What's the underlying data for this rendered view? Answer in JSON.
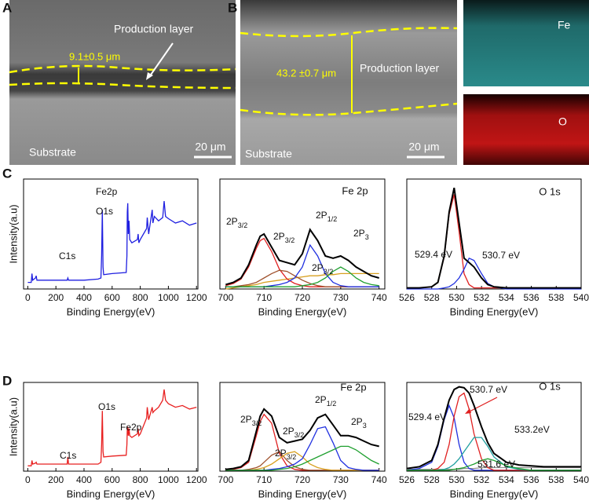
{
  "figure": {
    "panel_labels": [
      "A",
      "B",
      "C",
      "D"
    ],
    "sem_a": {
      "layer": "Production layer",
      "thickness": "9.1±0.5 μm",
      "substrate": "Substrate",
      "scale": "20 μm"
    },
    "sem_b": {
      "layer": "Production layer",
      "thickness": "43.2 ±0.7 μm",
      "substrate": "Substrate",
      "scale": "20 μm"
    },
    "eds": [
      "Fe",
      "O"
    ]
  },
  "chart_data": [
    {
      "type": "line",
      "xlabel": "Binding Energy(eV)",
      "ylabel": "Intensity(a.u)",
      "xlim": [
        -30,
        1210
      ],
      "xticks": [
        0,
        200,
        400,
        600,
        800,
        1000,
        1200
      ],
      "ylim": [
        0,
        100
      ],
      "x": [
        0,
        25,
        30,
        35,
        55,
        60,
        65,
        100,
        200,
        280,
        285,
        290,
        400,
        500,
        520,
        525,
        530,
        535,
        540,
        600,
        700,
        705,
        708,
        711,
        715,
        720,
        725,
        740,
        780,
        785,
        790,
        800,
        845,
        850,
        860,
        885,
        890,
        900,
        930,
        960,
        970,
        980,
        1000,
        1050,
        1100,
        1150,
        1200
      ],
      "series": [
        {
          "color": "#1f1fe0",
          "values": [
            6,
            6,
            14,
            8,
            10,
            12,
            8,
            8,
            8,
            8,
            10,
            8,
            8,
            9,
            10,
            30,
            72,
            20,
            13,
            14,
            15,
            30,
            70,
            78,
            50,
            62,
            45,
            42,
            45,
            50,
            42,
            45,
            55,
            65,
            50,
            72,
            60,
            66,
            62,
            65,
            80,
            66,
            64,
            60,
            62,
            58,
            60
          ]
        }
      ],
      "annotations": [
        {
          "text": "O1s"
        },
        {
          "text": "Fe2p"
        },
        {
          "text": "C1s"
        }
      ]
    },
    {
      "type": "line",
      "title": "Fe 2p",
      "xlabel": "Binding Energy(eV)",
      "xlim": [
        698.5,
        741.5
      ],
      "xticks": [
        700,
        710,
        720,
        730,
        740
      ],
      "ylim": [
        0,
        100
      ],
      "x": [
        700,
        702,
        704,
        706,
        708,
        709,
        710,
        712,
        714,
        716,
        718,
        720,
        722,
        724,
        726,
        728,
        730,
        732,
        734,
        736,
        738,
        740
      ],
      "series": [
        {
          "color": "#d8a020",
          "values": [
            0,
            1,
            2,
            3,
            4,
            5,
            6,
            7,
            8,
            9,
            10,
            11,
            12,
            12,
            13,
            13,
            14,
            14,
            14,
            14,
            14,
            14
          ]
        },
        {
          "color": "#e02020",
          "values": [
            3,
            5,
            9,
            20,
            37,
            44,
            46,
            34,
            18,
            9,
            5,
            3,
            2,
            2,
            2,
            2,
            2,
            2,
            2,
            2,
            2,
            2
          ]
        },
        {
          "color": "#a0522d",
          "values": [
            2,
            2,
            3,
            4,
            6,
            8,
            10,
            14,
            17,
            16,
            12,
            8,
            5,
            3,
            2,
            2,
            2,
            2,
            2,
            2,
            2,
            2
          ]
        },
        {
          "color": "#2030e0",
          "values": [
            2,
            2,
            2,
            2,
            2,
            2,
            2,
            3,
            4,
            6,
            10,
            20,
            40,
            30,
            14,
            6,
            3,
            2,
            2,
            2,
            2,
            2
          ]
        },
        {
          "color": "#20a030",
          "values": [
            2,
            2,
            2,
            2,
            2,
            2,
            2,
            2,
            2,
            2,
            2,
            3,
            4,
            6,
            10,
            16,
            20,
            16,
            10,
            6,
            4,
            3
          ]
        },
        {
          "color": "#000000",
          "values": [
            4,
            6,
            10,
            22,
            40,
            48,
            50,
            38,
            26,
            24,
            22,
            32,
            54,
            44,
            30,
            28,
            30,
            26,
            20,
            16,
            12,
            10
          ]
        }
      ],
      "annotations": [
        {
          "text": "2P",
          "sub": "3/2"
        },
        {
          "text": "2P",
          "sub": "3/2"
        },
        {
          "text": "2P",
          "sub": "1/2"
        },
        {
          "text": "2P",
          "sub": "3"
        },
        {
          "text": "2P",
          "sub": "3/2"
        }
      ]
    },
    {
      "type": "line",
      "title": "O 1s",
      "xlabel": "Binding Energy(eV)",
      "xlim": [
        526,
        540
      ],
      "xticks": [
        526,
        528,
        530,
        532,
        534,
        536,
        538,
        540
      ],
      "ylim": [
        0,
        100
      ],
      "x": [
        526,
        527,
        528,
        528.5,
        529,
        529.4,
        529.8,
        530.2,
        530.6,
        531,
        531.4,
        532,
        532.5,
        533,
        534,
        535,
        536,
        537,
        538,
        539,
        540
      ],
      "series": [
        {
          "color": "#e02020",
          "values": [
            1,
            1,
            2,
            6,
            29,
            68,
            86,
            52,
            14,
            4,
            1,
            1,
            1,
            1,
            1,
            1,
            1,
            1,
            1,
            1,
            1
          ]
        },
        {
          "color": "#2030e0",
          "values": [
            0,
            0,
            0,
            0,
            1,
            2,
            5,
            10,
            18,
            28,
            26,
            14,
            5,
            2,
            0,
            0,
            0,
            0,
            0,
            0,
            0
          ]
        },
        {
          "color": "#000000",
          "values": [
            1,
            1,
            2,
            6,
            30,
            70,
            92,
            60,
            28,
            24,
            20,
            10,
            4,
            2,
            1,
            1,
            1,
            1,
            1,
            1,
            1
          ]
        }
      ],
      "annotations": [
        {
          "text": "529.4 eV"
        },
        {
          "text": "530.7 eV"
        }
      ]
    },
    {
      "type": "line",
      "xlabel": "Binding Energy(eV)",
      "ylabel": "Intensity(a.u)",
      "xlim": [
        -30,
        1210
      ],
      "xticks": [
        0,
        200,
        400,
        600,
        800,
        1000,
        1200
      ],
      "ylim": [
        0,
        100
      ],
      "x": [
        0,
        25,
        30,
        35,
        55,
        60,
        65,
        100,
        200,
        280,
        285,
        290,
        400,
        500,
        520,
        525,
        530,
        535,
        540,
        600,
        700,
        705,
        708,
        711,
        715,
        720,
        725,
        740,
        780,
        785,
        790,
        800,
        845,
        850,
        860,
        885,
        890,
        900,
        930,
        960,
        970,
        980,
        1000,
        1050,
        1100,
        1150,
        1200
      ],
      "series": [
        {
          "color": "#e82020",
          "values": [
            6,
            6,
            12,
            8,
            9,
            10,
            8,
            8,
            8,
            8,
            16,
            8,
            8,
            8,
            10,
            30,
            68,
            22,
            16,
            17,
            18,
            30,
            48,
            50,
            40,
            48,
            40,
            38,
            42,
            48,
            40,
            42,
            60,
            72,
            58,
            72,
            66,
            68,
            72,
            80,
            92,
            80,
            76,
            72,
            74,
            70,
            72
          ]
        }
      ],
      "annotations": [
        {
          "text": "O1s"
        },
        {
          "text": "Fe2p"
        },
        {
          "text": "C1s"
        }
      ]
    },
    {
      "type": "line",
      "title": "Fe 2p",
      "xlabel": "Binding Energy(eV)",
      "xlim": [
        698.5,
        741.5
      ],
      "xticks": [
        700,
        710,
        720,
        730,
        740
      ],
      "ylim": [
        0,
        100
      ],
      "x": [
        700,
        702,
        704,
        706,
        708,
        709,
        710,
        712,
        714,
        716,
        718,
        720,
        722,
        724,
        726,
        728,
        730,
        732,
        734,
        736,
        738,
        740
      ],
      "series": [
        {
          "color": "#e02020",
          "values": [
            1,
            2,
            4,
            10,
            40,
            56,
            64,
            54,
            20,
            6,
            2,
            1,
            1,
            1,
            1,
            1,
            1,
            1,
            1,
            1,
            1,
            1
          ]
        },
        {
          "color": "#a0522d",
          "values": [
            1,
            1,
            1,
            2,
            4,
            6,
            10,
            18,
            22,
            12,
            5,
            2,
            1,
            1,
            1,
            1,
            1,
            1,
            1,
            1,
            1,
            1
          ]
        },
        {
          "color": "#d8a020",
          "values": [
            1,
            1,
            1,
            1,
            2,
            3,
            4,
            8,
            14,
            20,
            22,
            16,
            8,
            4,
            2,
            1,
            1,
            1,
            1,
            1,
            1,
            1
          ]
        },
        {
          "color": "#2030e0",
          "values": [
            1,
            1,
            1,
            1,
            1,
            1,
            1,
            2,
            3,
            5,
            8,
            14,
            30,
            48,
            50,
            32,
            12,
            4,
            2,
            1,
            1,
            1
          ]
        },
        {
          "color": "#20a030",
          "values": [
            1,
            1,
            1,
            1,
            1,
            1,
            1,
            1,
            2,
            3,
            5,
            8,
            12,
            16,
            20,
            24,
            28,
            28,
            24,
            18,
            12,
            8
          ]
        },
        {
          "color": "#000000",
          "values": [
            2,
            3,
            5,
            12,
            45,
            62,
            70,
            62,
            38,
            32,
            34,
            36,
            46,
            60,
            64,
            52,
            40,
            40,
            38,
            34,
            30,
            28
          ]
        }
      ],
      "annotations": [
        {
          "text": "2P",
          "sub": "3/2"
        },
        {
          "text": "2P",
          "sub": "3/2"
        },
        {
          "text": "2P",
          "sub": "1/2"
        },
        {
          "text": "2P",
          "sub": "3"
        },
        {
          "text": "2P",
          "sub": "3/2"
        }
      ]
    },
    {
      "type": "line",
      "title": "O 1s",
      "xlabel": "Binding Energy(eV)",
      "xlim": [
        526,
        540
      ],
      "xticks": [
        526,
        528,
        530,
        532,
        534,
        536,
        538,
        540
      ],
      "ylim": [
        0,
        100
      ],
      "x": [
        526,
        527,
        528,
        528.5,
        529,
        529.4,
        529.8,
        530.2,
        530.6,
        531,
        531.4,
        532,
        532.5,
        533,
        534,
        535,
        536,
        537,
        538,
        539,
        540
      ],
      "series": [
        {
          "color": "#909090",
          "values": [
            2,
            2,
            2,
            2,
            2,
            2,
            2,
            2,
            3,
            3,
            3,
            4,
            4,
            4,
            4,
            4,
            4,
            4,
            4,
            4,
            4
          ]
        },
        {
          "color": "#2030e0",
          "values": [
            1,
            3,
            10,
            28,
            58,
            74,
            60,
            30,
            10,
            3,
            1,
            1,
            1,
            1,
            1,
            1,
            1,
            1,
            1,
            1,
            1
          ]
        },
        {
          "color": "#e02020",
          "values": [
            1,
            1,
            1,
            3,
            10,
            30,
            62,
            84,
            88,
            70,
            42,
            14,
            4,
            1,
            1,
            1,
            1,
            1,
            1,
            1,
            1
          ]
        },
        {
          "color": "#20a0a0",
          "values": [
            1,
            1,
            1,
            1,
            2,
            4,
            8,
            14,
            22,
            30,
            38,
            38,
            28,
            16,
            5,
            2,
            1,
            1,
            1,
            1,
            1
          ]
        },
        {
          "color": "#20a030",
          "values": [
            1,
            1,
            1,
            1,
            1,
            1,
            2,
            3,
            4,
            6,
            8,
            12,
            14,
            12,
            6,
            3,
            1,
            1,
            1,
            1,
            1
          ]
        },
        {
          "color": "#000000",
          "values": [
            3,
            5,
            12,
            30,
            60,
            80,
            92,
            95,
            94,
            88,
            74,
            50,
            32,
            20,
            10,
            7,
            6,
            5,
            5,
            5,
            5
          ]
        }
      ],
      "annotations": [
        {
          "text": "530.7 eV"
        },
        {
          "text": "529.4 eV"
        },
        {
          "text": "533.2eV"
        },
        {
          "text": "531.6 eV"
        }
      ]
    }
  ]
}
